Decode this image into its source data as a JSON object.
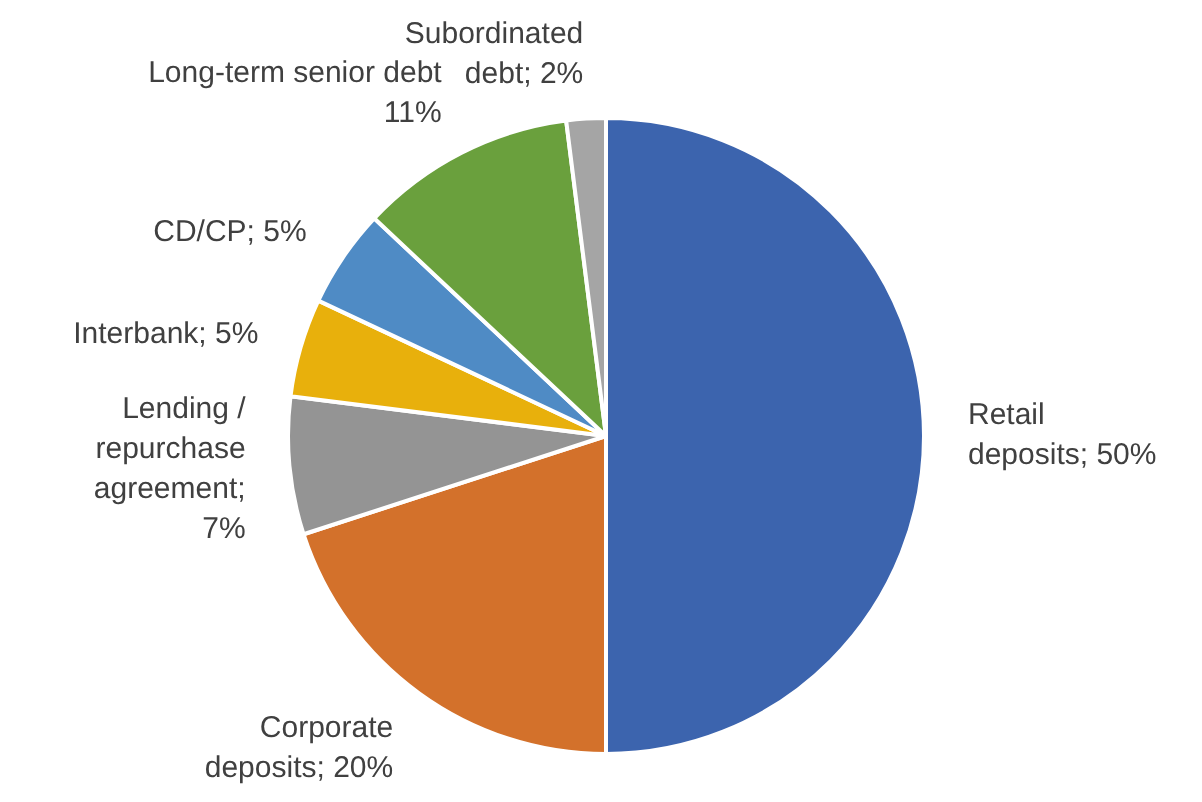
{
  "chart_data": {
    "type": "pie",
    "categories": [
      "Retail\ndeposits; 50%",
      "Corporate\ndeposits; 20%",
      "Lending /\nrepurchase\nagreement;\n7%",
      "Interbank; 5%",
      "CD/CP; 5%",
      "Long-term senior debt\n11%",
      "Subordinated\ndebt; 2%"
    ],
    "values": [
      50,
      20,
      7,
      5,
      5,
      11,
      2
    ],
    "colors": [
      "#3c64ae",
      "#d3712b",
      "#949494",
      "#e8b00c",
      "#4f8bc5",
      "#6aa03d",
      "#a5a5a5"
    ],
    "legend": false
  }
}
